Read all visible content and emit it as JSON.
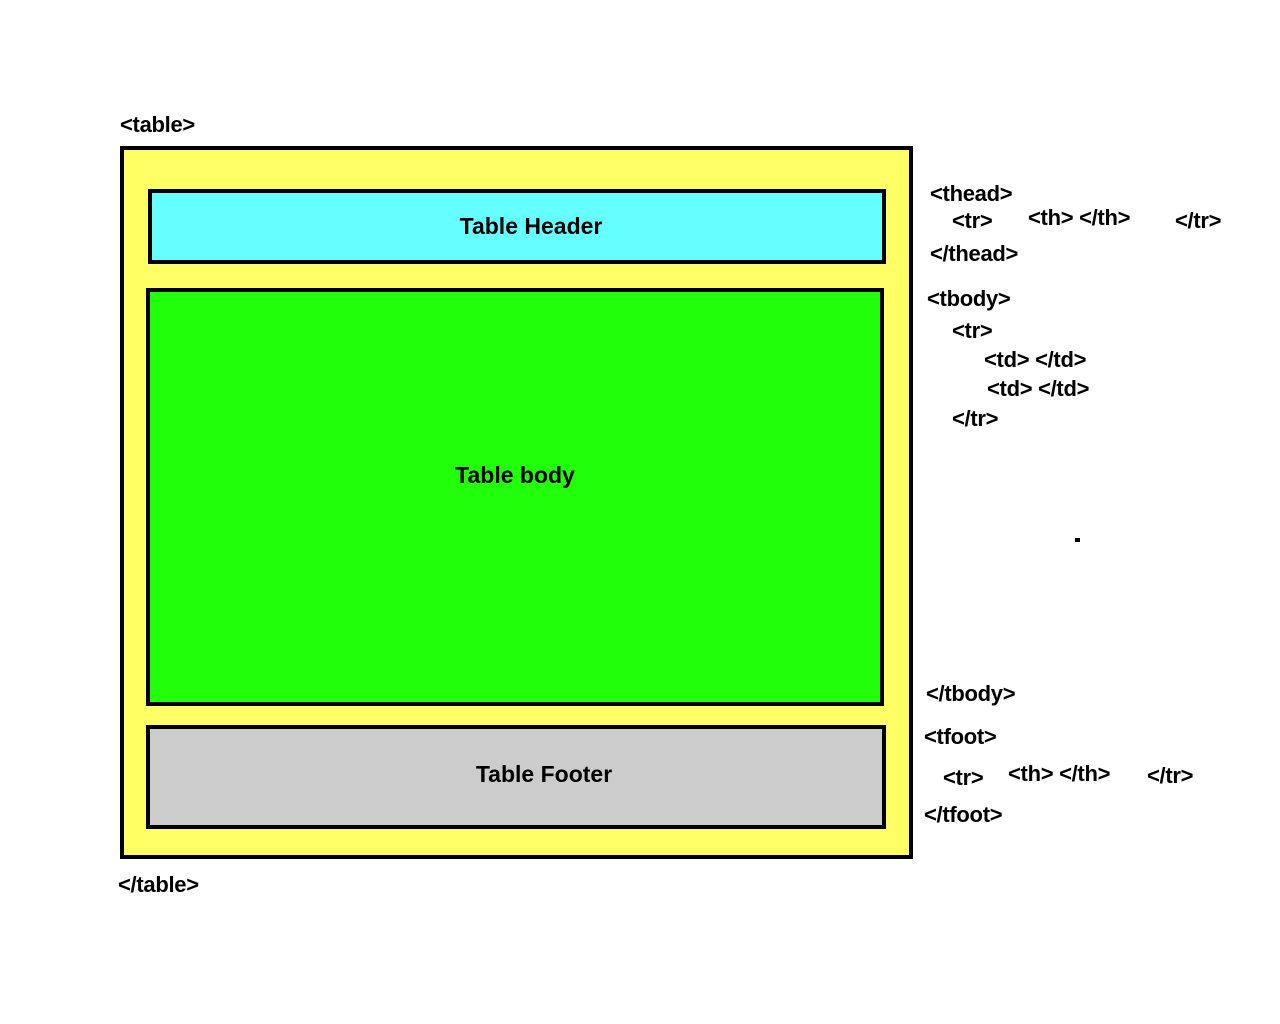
{
  "colors": {
    "table_fill": "#ffff66",
    "thead_fill": "#66ffff",
    "tbody_fill": "#22ff0a",
    "tfoot_fill": "#cccccc",
    "border": "#000000"
  },
  "table": {
    "open_tag": "<table>",
    "close_tag": "</table>"
  },
  "thead": {
    "label": "Table Header",
    "open_tag": "<thead>",
    "tr_open": "<tr>",
    "th_pair": "<th> </th>",
    "tr_close": "</tr>",
    "close_tag": "</thead>"
  },
  "tbody": {
    "label": "Table body",
    "open_tag": "<tbody>",
    "tr_open": "<tr>",
    "td_pair_1": "<td> </td>",
    "td_pair_2": "<td> </td>",
    "tr_close": "</tr>",
    "close_tag": "</tbody>"
  },
  "tfoot": {
    "label": "Table Footer",
    "open_tag": "<tfoot>",
    "tr_open": "<tr>",
    "th_pair": "<th> </th>",
    "tr_close": "</tr>",
    "close_tag": "</tfoot>"
  }
}
